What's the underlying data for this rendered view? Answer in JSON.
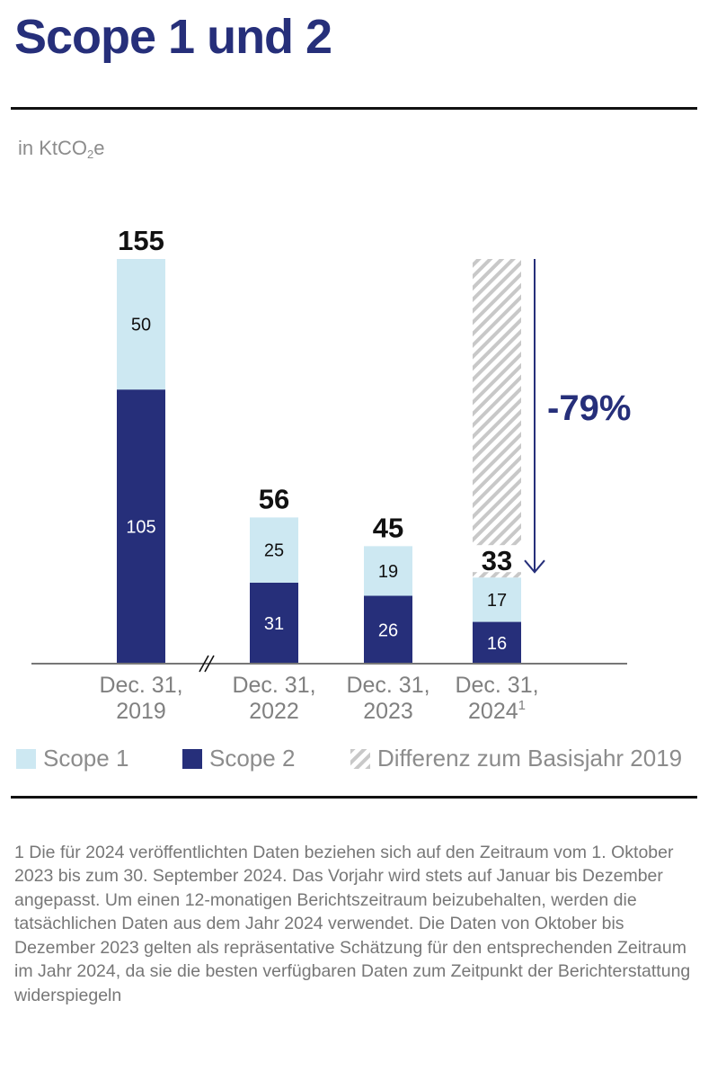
{
  "header": {
    "title": "Scope 1 und 2",
    "unit_prefix": "in KtCO",
    "unit_sub": "2",
    "unit_suffix": "e"
  },
  "chart_data": {
    "type": "bar",
    "stacked": true,
    "title": "Scope 1 und 2",
    "ylabel": "in KtCO2e",
    "xlabel": "",
    "categories": [
      "Dec. 31, 2019",
      "Dec. 31, 2022",
      "Dec. 31, 2023",
      "Dec. 31, 2024"
    ],
    "category_lines": [
      [
        "Dec. 31,",
        "2019"
      ],
      [
        "Dec. 31,",
        "2022"
      ],
      [
        "Dec. 31,",
        "2023"
      ],
      [
        "Dec. 31,",
        "2024"
      ]
    ],
    "category_superscripts": [
      "",
      "",
      "",
      "1"
    ],
    "series": [
      {
        "name": "Scope 2",
        "color": "#262f7a",
        "label_color": "#ffffff",
        "values": [
          105,
          31,
          26,
          16
        ]
      },
      {
        "name": "Scope 1",
        "color": "#cde8f2",
        "label_color": "#111111",
        "values": [
          50,
          25,
          19,
          17
        ]
      }
    ],
    "totals": [
      155,
      56,
      45,
      33
    ],
    "difference": {
      "name": "Differenz zum Basisjahr 2019",
      "category_index": 3,
      "from": 33,
      "to": 155,
      "label": "-79%",
      "label_color": "#262f7a"
    },
    "axis_break_after_index": 0,
    "ylim": [
      0,
      155
    ],
    "grid": false,
    "legend_position": "bottom",
    "legend": [
      {
        "name": "Scope 1",
        "color": "#cde8f2",
        "pattern": "solid"
      },
      {
        "name": "Scope 2",
        "color": "#262f7a",
        "pattern": "solid"
      },
      {
        "name": "Differenz zum Basisjahr 2019",
        "color": "#c8c8c8",
        "pattern": "hatched"
      }
    ]
  },
  "footnote": "1 Die für 2024 veröffentlichten Daten beziehen sich auf den Zeitraum vom 1. Oktober 2023 bis zum 30. September 2024. Das Vorjahr wird stets auf Januar bis Dezember angepasst. Um einen 12-monatigen Berichtszeitraum beizubehalten, werden die tatsächlichen Daten aus dem Jahr 2024 verwendet. Die Daten von Oktober bis Dezember 2023 gelten als repräsentative Schätzung für den entsprechenden Zeitraum im Jahr 2024, da sie die besten verfügbaren Daten zum Zeitpunkt der Berichterstattung widerspiegeln"
}
